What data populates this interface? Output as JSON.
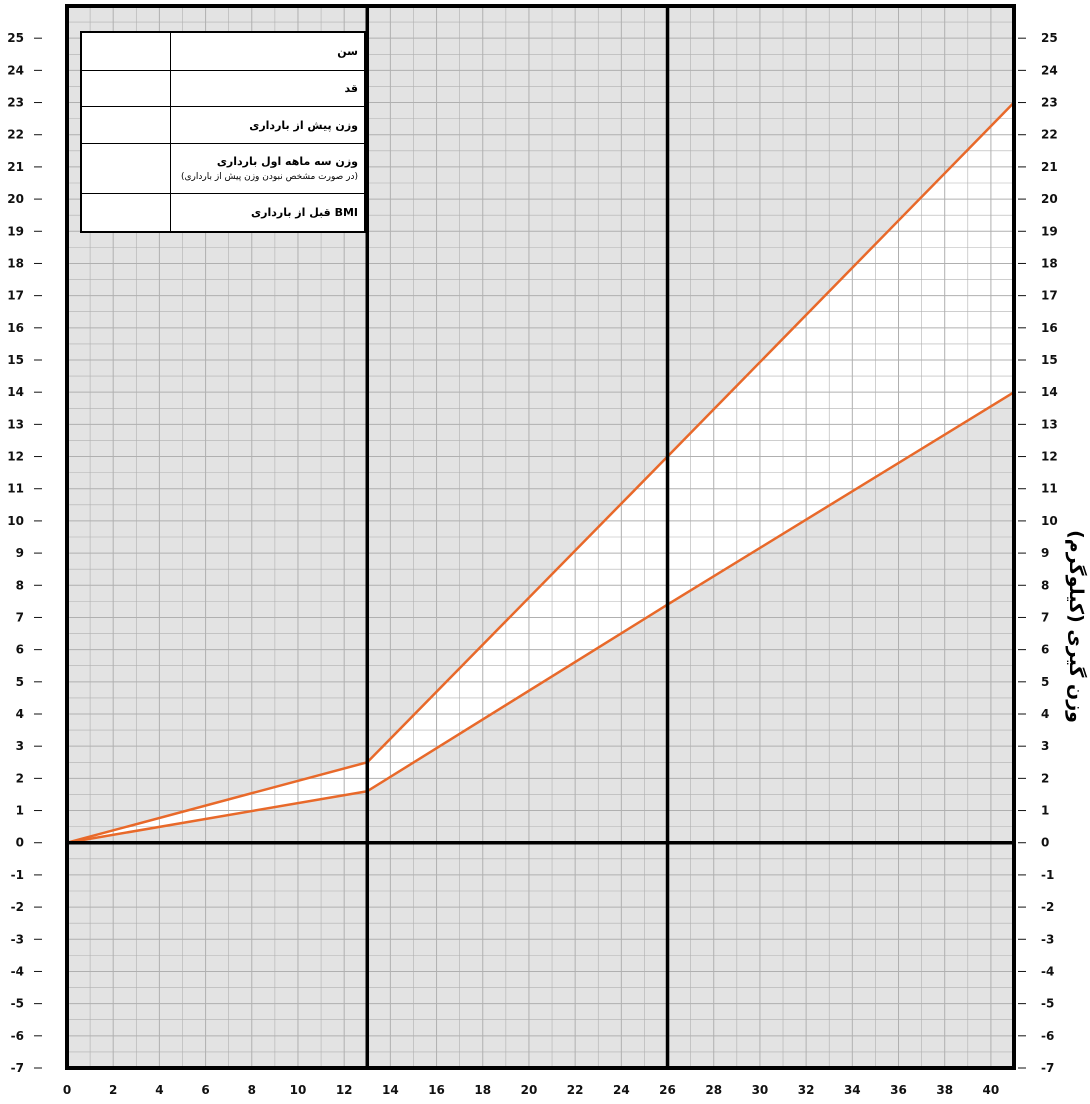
{
  "info_table": {
    "rows": [
      {
        "label": "سن",
        "note": ""
      },
      {
        "label": "قد",
        "note": ""
      },
      {
        "label": "وزن پیش از بارداری",
        "note": ""
      },
      {
        "label": "وزن سه ماهه اول بارداری",
        "note": "(در صورت مشخص نبودن وزن پیش از بارداری)"
      },
      {
        "label": "BMI قبل از بارداری",
        "note": ""
      }
    ]
  },
  "chart_data": {
    "type": "area",
    "title": "",
    "xlabel": "",
    "ylabel": "وزن گیری (کیلوگرم)",
    "xlim": [
      0,
      41
    ],
    "ylim": [
      -7,
      26
    ],
    "grid": true,
    "x_ticks": [
      0,
      2,
      4,
      6,
      8,
      10,
      12,
      14,
      16,
      18,
      20,
      22,
      24,
      26,
      28,
      30,
      32,
      34,
      36,
      38,
      40
    ],
    "y_ticks": [
      -7,
      -6,
      -5,
      -4,
      -3,
      -2,
      -1,
      0,
      1,
      2,
      3,
      4,
      5,
      6,
      7,
      8,
      9,
      10,
      11,
      12,
      13,
      14,
      15,
      16,
      17,
      18,
      19,
      20,
      21,
      22,
      23,
      24,
      25
    ],
    "trimester_dividers": [
      13,
      26
    ],
    "series": [
      {
        "x": [
          0,
          13,
          26,
          41
        ],
        "values": [
          0,
          2.5,
          12,
          23
        ],
        "color": "#e8692a"
      },
      {
        "x": [
          0,
          13,
          26,
          41
        ],
        "values": [
          0,
          1.6,
          7.4,
          14
        ],
        "color": "#e8692a"
      }
    ],
    "colors": {
      "background": "#e3e3e3",
      "band_fill": "#ffffff",
      "grid": "#b0b0b0",
      "frame": "#000000"
    }
  }
}
